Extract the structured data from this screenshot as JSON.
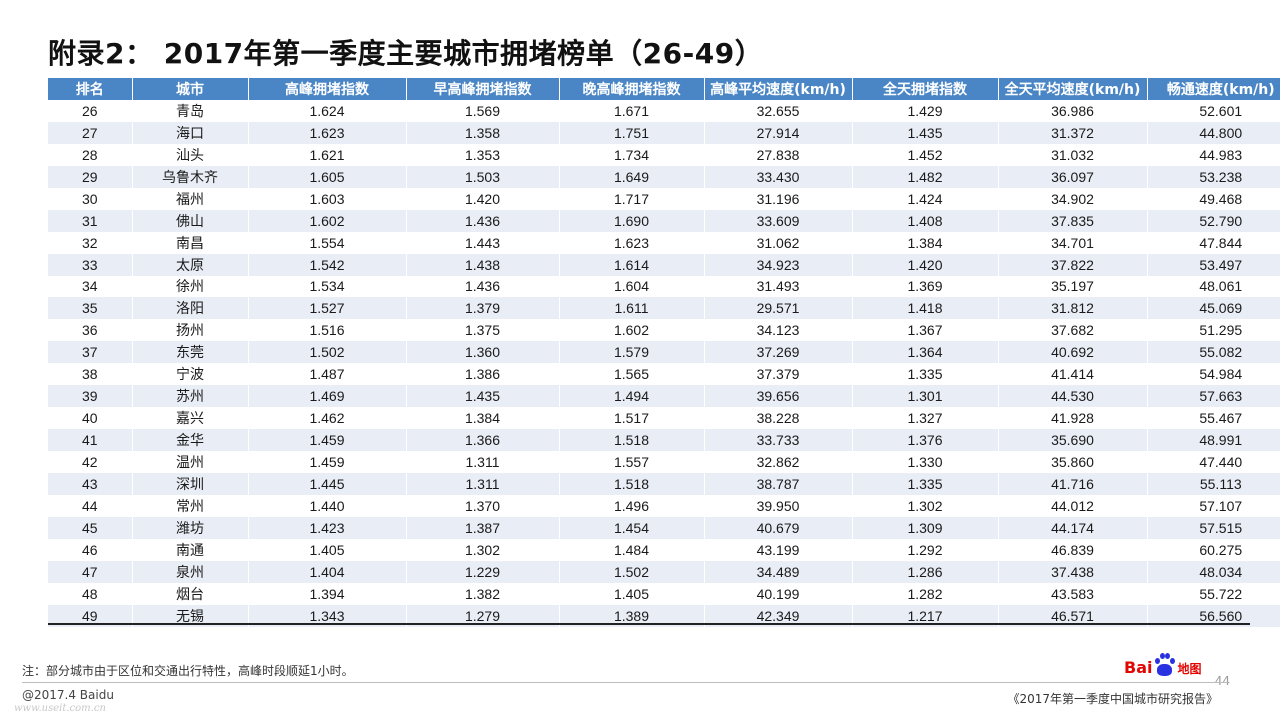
{
  "title": "附录2： 2017年第一季度主要城市拥堵榜单（26-49）",
  "table": {
    "headers": [
      "排名",
      "城市",
      "高峰拥堵指数",
      "早高峰拥堵指数",
      "晚高峰拥堵指数",
      "高峰平均速度(km/h)",
      "全天拥堵指数",
      "全天平均速度(km/h)",
      "畅通速度(km/h)"
    ],
    "rows": [
      [
        "26",
        "青岛",
        "1.624",
        "1.569",
        "1.671",
        "32.655",
        "1.429",
        "36.986",
        "52.601"
      ],
      [
        "27",
        "海口",
        "1.623",
        "1.358",
        "1.751",
        "27.914",
        "1.435",
        "31.372",
        "44.800"
      ],
      [
        "28",
        "汕头",
        "1.621",
        "1.353",
        "1.734",
        "27.838",
        "1.452",
        "31.032",
        "44.983"
      ],
      [
        "29",
        "乌鲁木齐",
        "1.605",
        "1.503",
        "1.649",
        "33.430",
        "1.482",
        "36.097",
        "53.238"
      ],
      [
        "30",
        "福州",
        "1.603",
        "1.420",
        "1.717",
        "31.196",
        "1.424",
        "34.902",
        "49.468"
      ],
      [
        "31",
        "佛山",
        "1.602",
        "1.436",
        "1.690",
        "33.609",
        "1.408",
        "37.835",
        "52.790"
      ],
      [
        "32",
        "南昌",
        "1.554",
        "1.443",
        "1.623",
        "31.062",
        "1.384",
        "34.701",
        "47.844"
      ],
      [
        "33",
        "太原",
        "1.542",
        "1.438",
        "1.614",
        "34.923",
        "1.420",
        "37.822",
        "53.497"
      ],
      [
        "34",
        "徐州",
        "1.534",
        "1.436",
        "1.604",
        "31.493",
        "1.369",
        "35.197",
        "48.061"
      ],
      [
        "35",
        "洛阳",
        "1.527",
        "1.379",
        "1.611",
        "29.571",
        "1.418",
        "31.812",
        "45.069"
      ],
      [
        "36",
        "扬州",
        "1.516",
        "1.375",
        "1.602",
        "34.123",
        "1.367",
        "37.682",
        "51.295"
      ],
      [
        "37",
        "东莞",
        "1.502",
        "1.360",
        "1.579",
        "37.269",
        "1.364",
        "40.692",
        "55.082"
      ],
      [
        "38",
        "宁波",
        "1.487",
        "1.386",
        "1.565",
        "37.379",
        "1.335",
        "41.414",
        "54.984"
      ],
      [
        "39",
        "苏州",
        "1.469",
        "1.435",
        "1.494",
        "39.656",
        "1.301",
        "44.530",
        "57.663"
      ],
      [
        "40",
        "嘉兴",
        "1.462",
        "1.384",
        "1.517",
        "38.228",
        "1.327",
        "41.928",
        "55.467"
      ],
      [
        "41",
        "金华",
        "1.459",
        "1.366",
        "1.518",
        "33.733",
        "1.376",
        "35.690",
        "48.991"
      ],
      [
        "42",
        "温州",
        "1.459",
        "1.311",
        "1.557",
        "32.862",
        "1.330",
        "35.860",
        "47.440"
      ],
      [
        "43",
        "深圳",
        "1.445",
        "1.311",
        "1.518",
        "38.787",
        "1.335",
        "41.716",
        "55.113"
      ],
      [
        "44",
        "常州",
        "1.440",
        "1.370",
        "1.496",
        "39.950",
        "1.302",
        "44.012",
        "57.107"
      ],
      [
        "45",
        "潍坊",
        "1.423",
        "1.387",
        "1.454",
        "40.679",
        "1.309",
        "44.174",
        "57.515"
      ],
      [
        "46",
        "南通",
        "1.405",
        "1.302",
        "1.484",
        "43.199",
        "1.292",
        "46.839",
        "60.275"
      ],
      [
        "47",
        "泉州",
        "1.404",
        "1.229",
        "1.502",
        "34.489",
        "1.286",
        "37.438",
        "48.034"
      ],
      [
        "48",
        "烟台",
        "1.394",
        "1.382",
        "1.405",
        "40.199",
        "1.282",
        "43.583",
        "55.722"
      ],
      [
        "49",
        "无锡",
        "1.343",
        "1.279",
        "1.389",
        "42.349",
        "1.217",
        "46.571",
        "56.560"
      ]
    ]
  },
  "footnote": "注：部分城市由于区位和交通出行特性，高峰时段顺延1小时。",
  "copyright": "@2017.4 Baidu",
  "watermark": "www.useit.com.cn",
  "report_name": "《2017年第一季度中国城市研究报告》",
  "page_number": "44",
  "logo": {
    "text_left": "Bai",
    "text_right": "地图",
    "icon": "baidu-paw-icon",
    "colors": {
      "red": "#e10602",
      "blue": "#2932e1"
    }
  },
  "colors": {
    "header_bg": "#4a86c5",
    "stripe_bg": "#e9eef6"
  }
}
